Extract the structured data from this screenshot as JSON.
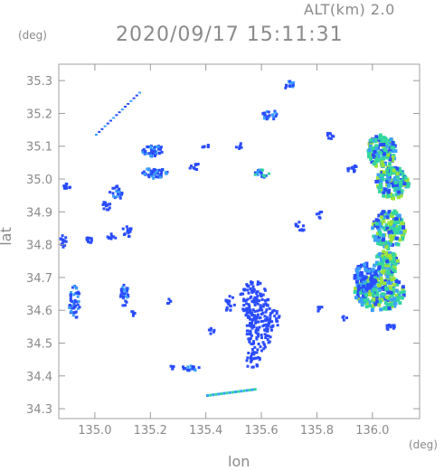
{
  "header": {
    "altitude": "ALT(km) 2.0",
    "timestamp": "2020/09/17 15:11:31"
  },
  "axes": {
    "y_unit": "(deg)",
    "x_unit": "(deg)",
    "y_label": "lat",
    "x_label": "lon",
    "x_range": [
      134.87,
      136.17
    ],
    "y_range": [
      34.27,
      35.35
    ],
    "x_ticks": [
      135.0,
      135.2,
      135.4,
      135.6,
      135.8,
      136.0
    ],
    "x_tick_labels": [
      "135.0",
      "135.2",
      "135.4",
      "135.6",
      "135.8",
      "136.0"
    ],
    "y_ticks": [
      34.3,
      34.4,
      34.5,
      34.6,
      34.7,
      34.8,
      34.9,
      35.0,
      35.1,
      35.2,
      35.3
    ],
    "y_tick_labels": [
      "34.3",
      "34.4",
      "34.5",
      "34.6",
      "34.7",
      "34.8",
      "34.9",
      "35.0",
      "35.1",
      "35.2",
      "35.3"
    ]
  },
  "colors": {
    "weak": "#2a4cff",
    "moderate": "#3aa0ff",
    "strong": "#33d6a0",
    "intense": "#9be23a",
    "axis": "#9a9a9a"
  }
}
